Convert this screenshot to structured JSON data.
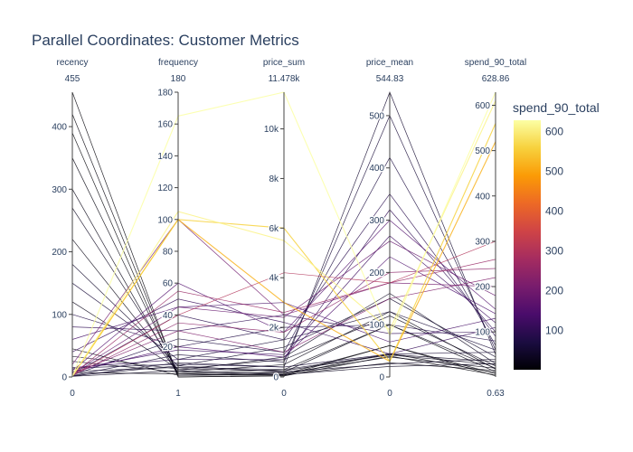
{
  "chart_data": {
    "type": "parallel_coordinates",
    "title": "Parallel Coordinates: Customer Metrics",
    "color_dimension": "spend_90_total",
    "colorscale": "inferno",
    "colorscale_stops": [
      "#000004",
      "#1b0c41",
      "#4a0c6b",
      "#781c6d",
      "#a52c60",
      "#cf4446",
      "#ed6925",
      "#fb9b06",
      "#f7d13d",
      "#fcffa4"
    ],
    "dimensions": [
      {
        "name": "recency",
        "range_max_label": "455",
        "range_min_label": "0",
        "min": 0,
        "max": 455,
        "ticks": [
          0,
          100,
          200,
          300,
          400
        ],
        "tick_labels": [
          "0",
          "100",
          "200",
          "300",
          "400"
        ]
      },
      {
        "name": "frequency",
        "range_max_label": "180",
        "range_min_label": "1",
        "min": 1,
        "max": 180,
        "ticks": [
          20,
          40,
          60,
          80,
          100,
          120,
          140,
          160,
          180
        ],
        "tick_labels": [
          "20",
          "40",
          "60",
          "80",
          "100",
          "120",
          "140",
          "160",
          "180"
        ]
      },
      {
        "name": "price_sum",
        "range_max_label": "11.478k",
        "range_min_label": "0",
        "min": 0,
        "max": 11478,
        "ticks": [
          0,
          2000,
          4000,
          6000,
          8000,
          10000
        ],
        "tick_labels": [
          "0",
          "2k",
          "4k",
          "6k",
          "8k",
          "10k"
        ]
      },
      {
        "name": "price_mean",
        "range_max_label": "544.83",
        "range_min_label": "0",
        "min": 0,
        "max": 544.83,
        "ticks": [
          0,
          100,
          200,
          300,
          400,
          500
        ],
        "tick_labels": [
          "0",
          "100",
          "200",
          "300",
          "400",
          "500"
        ]
      },
      {
        "name": "spend_90_total",
        "range_max_label": "628.86",
        "range_min_label": "0.63",
        "min": 0.63,
        "max": 628.86,
        "ticks": [
          100,
          200,
          300,
          400,
          500,
          600
        ],
        "tick_labels": [
          "100",
          "200",
          "300",
          "400",
          "500",
          "600"
        ]
      }
    ],
    "colorbar": {
      "title": "spend_90_total",
      "min": 0.63,
      "max": 628.86,
      "ticks": [
        100,
        200,
        300,
        400,
        500,
        600
      ],
      "tick_labels": [
        "100",
        "200",
        "300",
        "400",
        "500",
        "600"
      ]
    },
    "sample_records": [
      [
        455,
        1,
        40,
        40,
        5
      ],
      [
        420,
        2,
        120,
        60,
        8
      ],
      [
        390,
        1,
        60,
        60,
        3
      ],
      [
        350,
        3,
        300,
        100,
        12
      ],
      [
        300,
        2,
        200,
        100,
        20
      ],
      [
        270,
        5,
        800,
        160,
        30
      ],
      [
        220,
        4,
        500,
        125,
        18
      ],
      [
        180,
        8,
        1200,
        150,
        45
      ],
      [
        150,
        12,
        1500,
        125,
        60
      ],
      [
        120,
        6,
        700,
        117,
        25
      ],
      [
        100,
        20,
        2000,
        100,
        80
      ],
      [
        80,
        30,
        2500,
        83,
        100
      ],
      [
        60,
        45,
        3000,
        67,
        130
      ],
      [
        40,
        50,
        2200,
        44,
        110
      ],
      [
        20,
        100,
        2500,
        180,
        200
      ],
      [
        10,
        60,
        1800,
        300,
        150
      ],
      [
        5,
        40,
        1500,
        350,
        90
      ],
      [
        3,
        25,
        1000,
        420,
        70
      ],
      [
        2,
        15,
        600,
        500,
        60
      ],
      [
        1,
        10,
        400,
        544.83,
        50
      ],
      [
        2,
        35,
        1800,
        200,
        240
      ],
      [
        4,
        55,
        2600,
        180,
        260
      ],
      [
        6,
        45,
        2400,
        260,
        180
      ],
      [
        8,
        20,
        800,
        230,
        140
      ],
      [
        12,
        18,
        900,
        270,
        120
      ],
      [
        15,
        12,
        700,
        320,
        100
      ],
      [
        1,
        100,
        6000,
        30,
        560
      ],
      [
        1,
        165,
        11478,
        80,
        628.86
      ],
      [
        2,
        100,
        3000,
        30,
        520
      ],
      [
        1,
        105,
        5500,
        90,
        610
      ],
      [
        3,
        40,
        4200,
        180,
        300
      ],
      [
        5,
        30,
        1000,
        150,
        220
      ],
      [
        2,
        8,
        200,
        25,
        40
      ],
      [
        1,
        5,
        100,
        20,
        30
      ],
      [
        7,
        3,
        80,
        27,
        15
      ],
      [
        9,
        7,
        300,
        43,
        35
      ],
      [
        14,
        9,
        400,
        44,
        55
      ],
      [
        25,
        4,
        150,
        38,
        20
      ],
      [
        33,
        6,
        250,
        42,
        28
      ],
      [
        45,
        2,
        90,
        45,
        10
      ]
    ]
  }
}
